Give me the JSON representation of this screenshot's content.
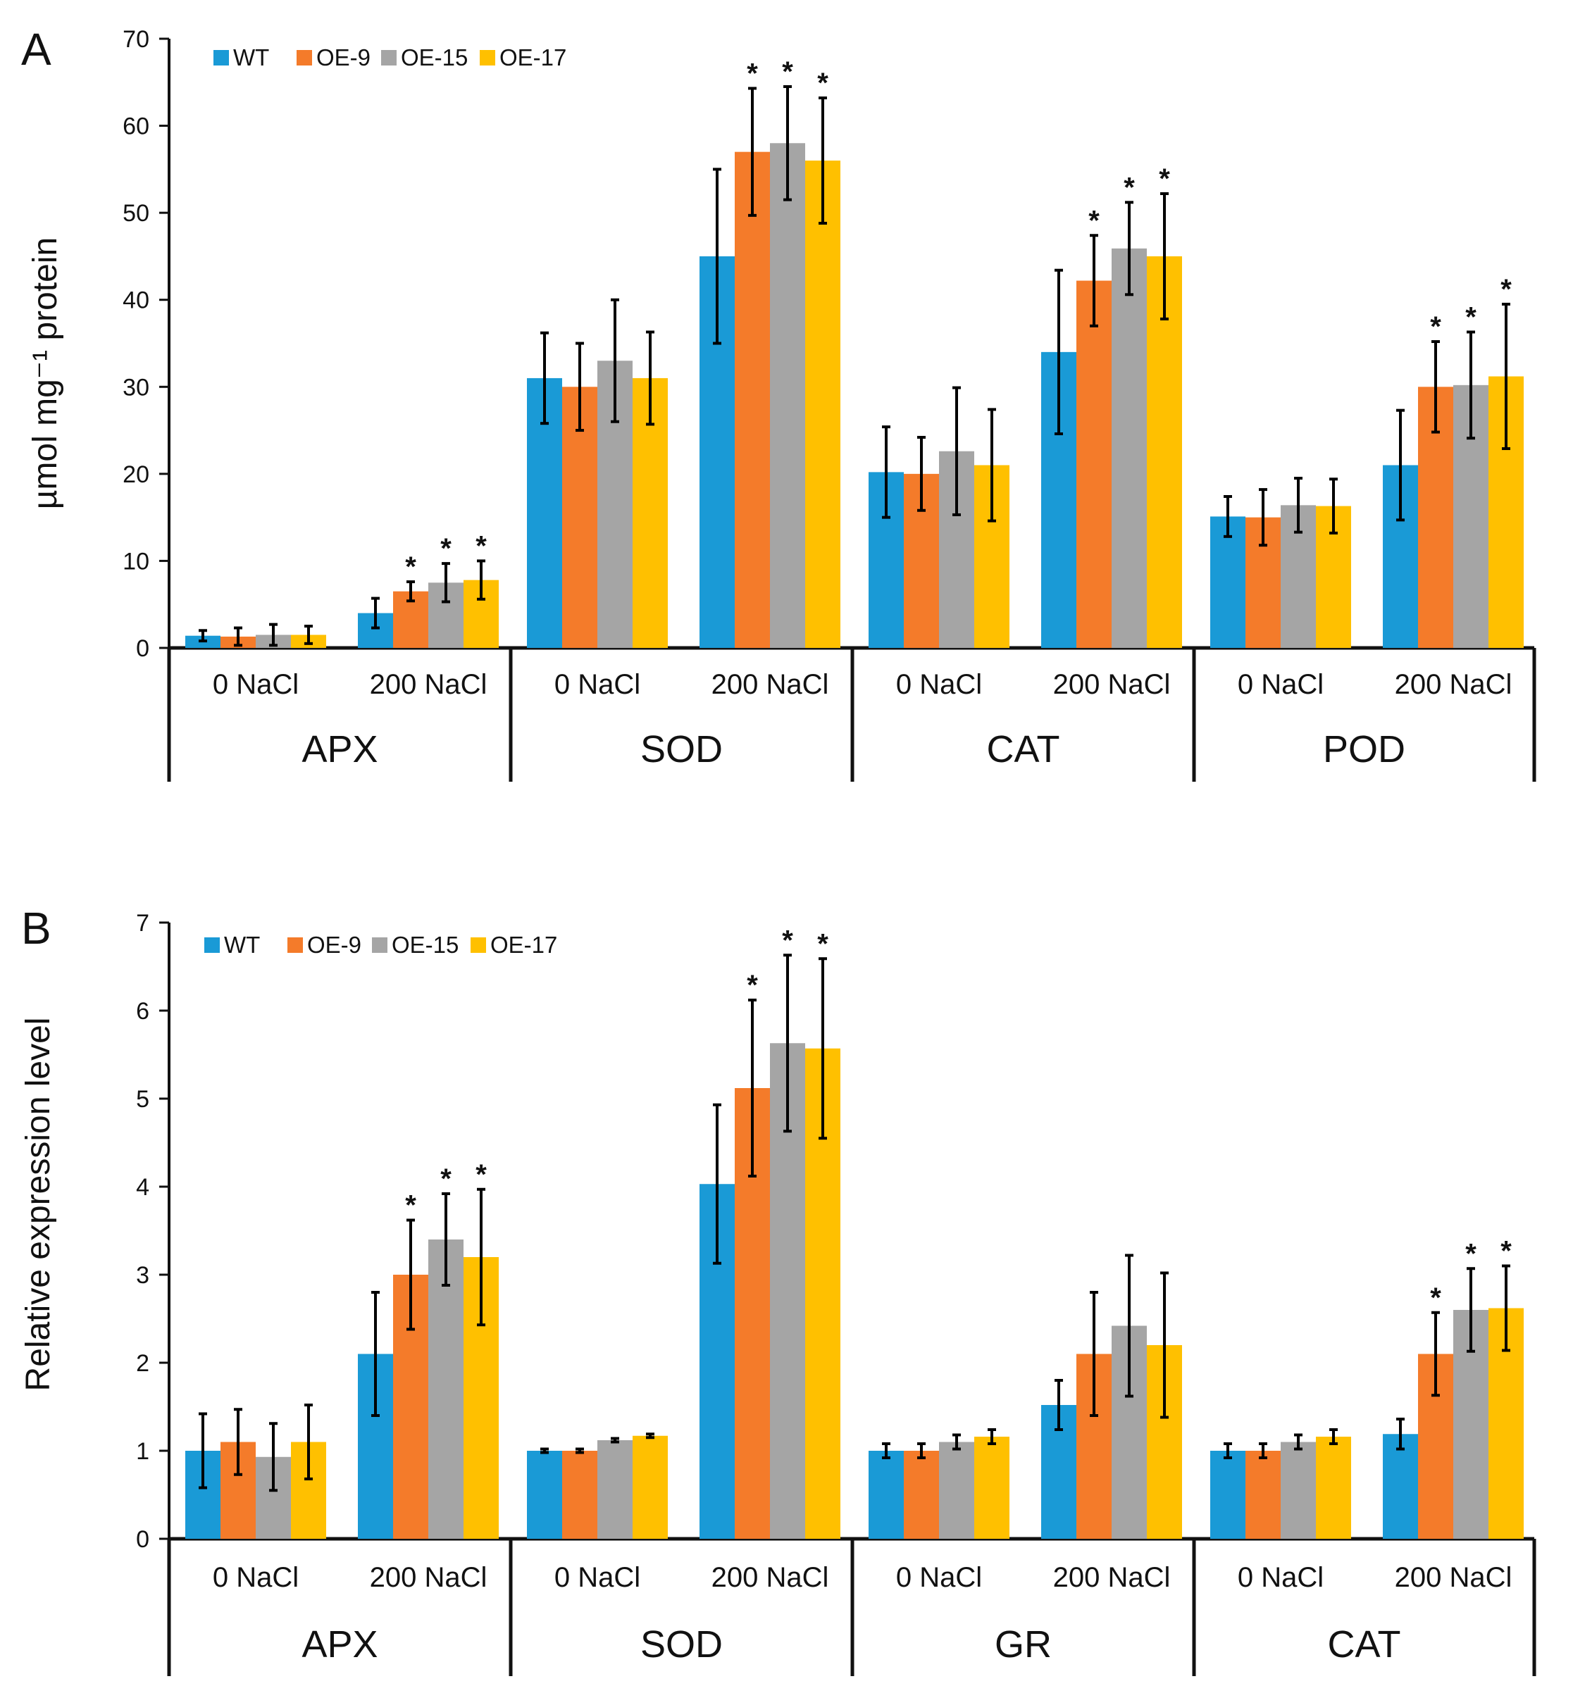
{
  "figure": {
    "panels": [
      {
        "letter": "A",
        "ylabel": "µmol mg⁻¹ protein"
      },
      {
        "letter": "B",
        "ylabel": "Relative expression level"
      }
    ]
  },
  "chart_data": [
    {
      "type": "bar",
      "panel": "A",
      "ylabel": "µmol mg⁻¹ protein",
      "ylim": [
        0,
        70
      ],
      "yticks": [
        0,
        10,
        20,
        30,
        40,
        50,
        60,
        70
      ],
      "legend": {
        "position": "top-left",
        "entries": [
          "WT",
          "OE-9",
          "OE-15",
          "OE-17"
        ]
      },
      "series_colors": {
        "WT": "#1a9ad6",
        "OE-9": "#f47b2a",
        "OE-15": "#a5a5a5",
        "OE-17": "#ffc000"
      },
      "groups": [
        {
          "name": "APX",
          "conditions": [
            {
              "label": "0 NaCl",
              "values": [
                1.4,
                1.3,
                1.5,
                1.5
              ],
              "errors": [
                0.6,
                1.0,
                1.2,
                1.0
              ],
              "sig": [
                false,
                false,
                false,
                false
              ]
            },
            {
              "label": "200 NaCl",
              "values": [
                4.0,
                6.5,
                7.5,
                7.8
              ],
              "errors": [
                1.7,
                1.1,
                2.2,
                2.2
              ],
              "sig": [
                false,
                true,
                true,
                true
              ]
            }
          ]
        },
        {
          "name": "SOD",
          "conditions": [
            {
              "label": "0 NaCl",
              "values": [
                31,
                30,
                33,
                31
              ],
              "errors": [
                5.2,
                5.0,
                7.0,
                5.3
              ],
              "sig": [
                false,
                false,
                false,
                false
              ]
            },
            {
              "label": "200 NaCl",
              "values": [
                45,
                57,
                58,
                56
              ],
              "errors": [
                10,
                7.3,
                6.5,
                7.2
              ],
              "sig": [
                false,
                true,
                true,
                true
              ]
            }
          ]
        },
        {
          "name": "CAT",
          "conditions": [
            {
              "label": "0 NaCl",
              "values": [
                20.2,
                20.0,
                22.6,
                21.0
              ],
              "errors": [
                5.2,
                4.2,
                7.3,
                6.4
              ],
              "sig": [
                false,
                false,
                false,
                false
              ]
            },
            {
              "label": "200 NaCl",
              "values": [
                34,
                42.2,
                45.9,
                45
              ],
              "errors": [
                9.4,
                5.2,
                5.3,
                7.2
              ],
              "sig": [
                false,
                true,
                true,
                true
              ]
            }
          ]
        },
        {
          "name": "POD",
          "conditions": [
            {
              "label": "0 NaCl",
              "values": [
                15.1,
                15.0,
                16.4,
                16.3
              ],
              "errors": [
                2.3,
                3.2,
                3.1,
                3.1
              ],
              "sig": [
                false,
                false,
                false,
                false
              ]
            },
            {
              "label": "200 NaCl",
              "values": [
                21.0,
                30.0,
                30.2,
                31.2
              ],
              "errors": [
                6.3,
                5.2,
                6.1,
                8.3
              ],
              "sig": [
                false,
                true,
                true,
                true
              ]
            }
          ]
        }
      ]
    },
    {
      "type": "bar",
      "panel": "B",
      "ylabel": "Relative expression level",
      "ylim": [
        0,
        7
      ],
      "yticks": [
        0,
        1,
        2,
        3,
        4,
        5,
        6,
        7
      ],
      "legend": {
        "position": "top-left",
        "entries": [
          "WT",
          "OE-9",
          "OE-15",
          "OE-17"
        ]
      },
      "series_colors": {
        "WT": "#1a9ad6",
        "OE-9": "#f47b2a",
        "OE-15": "#a5a5a5",
        "OE-17": "#ffc000"
      },
      "groups": [
        {
          "name": "APX",
          "conditions": [
            {
              "label": "0 NaCl",
              "values": [
                1.0,
                1.1,
                0.93,
                1.1
              ],
              "errors": [
                0.42,
                0.37,
                0.38,
                0.42
              ],
              "sig": [
                false,
                false,
                false,
                false
              ]
            },
            {
              "label": "200 NaCl",
              "values": [
                2.1,
                3.0,
                3.4,
                3.2
              ],
              "errors": [
                0.7,
                0.62,
                0.52,
                0.77
              ],
              "sig": [
                false,
                true,
                true,
                true
              ]
            }
          ]
        },
        {
          "name": "SOD",
          "conditions": [
            {
              "label": "0 NaCl",
              "values": [
                1.0,
                1.0,
                1.12,
                1.17
              ],
              "errors": [
                0.02,
                0.02,
                0.02,
                0.02
              ],
              "sig": [
                false,
                false,
                false,
                false
              ]
            },
            {
              "label": "200 NaCl",
              "values": [
                4.03,
                5.12,
                5.63,
                5.57
              ],
              "errors": [
                0.9,
                1.0,
                1.0,
                1.02
              ],
              "sig": [
                false,
                true,
                true,
                true
              ]
            }
          ]
        },
        {
          "name": "GR",
          "conditions": [
            {
              "label": "0 NaCl",
              "values": [
                1.0,
                1.0,
                1.1,
                1.16
              ],
              "errors": [
                0.08,
                0.08,
                0.08,
                0.08
              ],
              "sig": [
                false,
                false,
                false,
                false
              ]
            },
            {
              "label": "200 NaCl",
              "values": [
                1.52,
                2.1,
                2.42,
                2.2
              ],
              "errors": [
                0.28,
                0.7,
                0.8,
                0.82
              ],
              "sig": [
                false,
                false,
                false,
                false
              ]
            }
          ]
        },
        {
          "name": "CAT",
          "conditions": [
            {
              "label": "0 NaCl",
              "values": [
                1.0,
                1.0,
                1.1,
                1.16
              ],
              "errors": [
                0.08,
                0.08,
                0.08,
                0.08
              ],
              "sig": [
                false,
                false,
                false,
                false
              ]
            },
            {
              "label": "200 NaCl",
              "values": [
                1.19,
                2.1,
                2.6,
                2.62
              ],
              "errors": [
                0.17,
                0.47,
                0.47,
                0.48
              ],
              "sig": [
                false,
                true,
                true,
                true
              ]
            }
          ]
        }
      ]
    }
  ]
}
